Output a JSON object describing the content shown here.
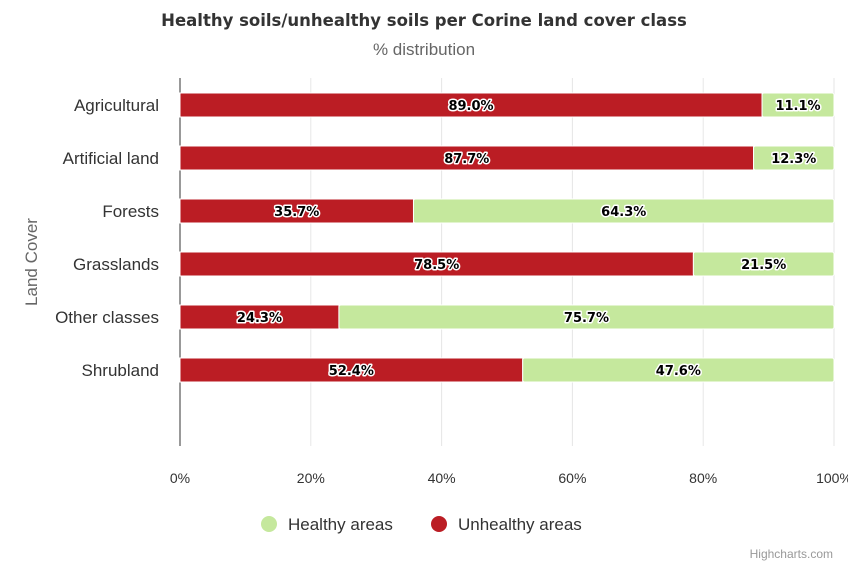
{
  "chart_data": {
    "type": "bar",
    "stacking": "percent",
    "orientation": "horizontal",
    "title": "Healthy soils/unhealthy soils per Corine land cover class",
    "subtitle": "% distribution",
    "ylabel": "Land Cover",
    "categories": [
      "Agricultural",
      "Artificial land",
      "Forests",
      "Grasslands",
      "Other classes",
      "Shrubland"
    ],
    "x_ticks": [
      "0%",
      "20%",
      "40%",
      "60%",
      "80%",
      "100%"
    ],
    "xlim": [
      0,
      100
    ],
    "series": [
      {
        "name": "Unhealthy areas",
        "color": "#bb1d24",
        "values": [
          89.0,
          87.7,
          35.7,
          78.5,
          24.3,
          52.4
        ],
        "labels": [
          "89.0%",
          "87.7%",
          "35.7%",
          "78.5%",
          "24.3%",
          "52.4%"
        ]
      },
      {
        "name": "Healthy areas",
        "color": "#c5e89d",
        "values": [
          11.1,
          12.3,
          64.3,
          21.5,
          75.7,
          47.6
        ],
        "labels": [
          "11.1%",
          "12.3%",
          "64.3%",
          "21.5%",
          "75.7%",
          "47.6%"
        ]
      }
    ],
    "legend": {
      "placement": "bottom",
      "items": [
        {
          "name": "Healthy areas",
          "color": "#c5e89d"
        },
        {
          "name": "Unhealthy areas",
          "color": "#bb1d24"
        }
      ]
    },
    "grid": true
  },
  "credits": "Highcharts.com"
}
